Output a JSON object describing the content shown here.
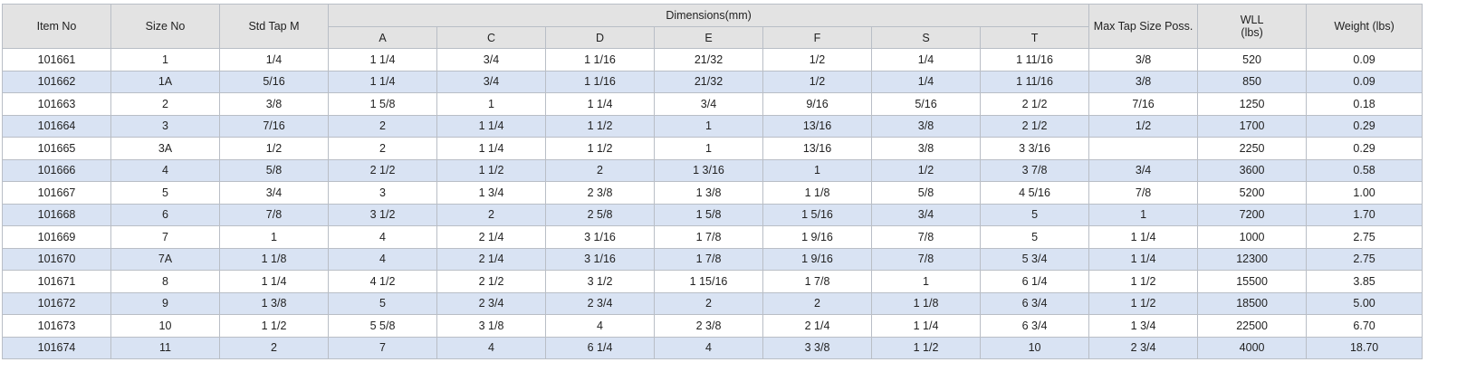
{
  "table": {
    "headers": {
      "item_no": "Item No",
      "size_no": "Size No",
      "std_tap": "Std Tap M",
      "dimensions": "Dimensions(mm)",
      "dim_cols": [
        "A",
        "C",
        "D",
        "E",
        "F",
        "S",
        "T"
      ],
      "max_tap": "Max Tap Size Poss.",
      "wll_line1": "WLL",
      "wll_line2": "(lbs)",
      "weight": "Weight (lbs)"
    },
    "rows": [
      [
        "101661",
        "1",
        "1/4",
        "1 1/4",
        "3/4",
        "1 1/16",
        "21/32",
        "1/2",
        "1/4",
        "1 11/16",
        "3/8",
        "520",
        "0.09"
      ],
      [
        "101662",
        "1A",
        "5/16",
        "1 1/4",
        "3/4",
        "1 1/16",
        "21/32",
        "1/2",
        "1/4",
        "1 11/16",
        "3/8",
        "850",
        "0.09"
      ],
      [
        "101663",
        "2",
        "3/8",
        "1 5/8",
        "1",
        "1 1/4",
        "3/4",
        "9/16",
        "5/16",
        "2 1/2",
        "7/16",
        "1250",
        "0.18"
      ],
      [
        "101664",
        "3",
        "7/16",
        "2",
        "1 1/4",
        "1 1/2",
        "1",
        "13/16",
        "3/8",
        "2 1/2",
        "1/2",
        "1700",
        "0.29"
      ],
      [
        "101665",
        "3A",
        "1/2",
        "2",
        "1 1/4",
        "1 1/2",
        "1",
        "13/16",
        "3/8",
        "3 3/16",
        "",
        "2250",
        "0.29"
      ],
      [
        "101666",
        "4",
        "5/8",
        "2 1/2",
        "1 1/2",
        "2",
        "1 3/16",
        "1",
        "1/2",
        "3 7/8",
        "3/4",
        "3600",
        "0.58"
      ],
      [
        "101667",
        "5",
        "3/4",
        "3",
        "1 3/4",
        "2 3/8",
        "1 3/8",
        "1 1/8",
        "5/8",
        "4 5/16",
        "7/8",
        "5200",
        "1.00"
      ],
      [
        "101668",
        "6",
        "7/8",
        "3 1/2",
        "2",
        "2 5/8",
        "1 5/8",
        "1 5/16",
        "3/4",
        "5",
        "1",
        "7200",
        "1.70"
      ],
      [
        "101669",
        "7",
        "1",
        "4",
        "2 1/4",
        "3 1/16",
        "1 7/8",
        "1 9/16",
        "7/8",
        "5",
        "1 1/4",
        "1000",
        "2.75"
      ],
      [
        "101670",
        "7A",
        "1 1/8",
        "4",
        "2 1/4",
        "3 1/16",
        "1 7/8",
        "1 9/16",
        "7/8",
        "5 3/4",
        "1 1/4",
        "12300",
        "2.75"
      ],
      [
        "101671",
        "8",
        "1 1/4",
        "4 1/2",
        "2 1/2",
        "3 1/2",
        "1 15/16",
        "1 7/8",
        "1",
        "6 1/4",
        "1 1/2",
        "15500",
        "3.85"
      ],
      [
        "101672",
        "9",
        "1 3/8",
        "5",
        "2 3/4",
        "2 3/4",
        "2",
        "2",
        "1 1/8",
        "6 3/4",
        "1 1/2",
        "18500",
        "5.00"
      ],
      [
        "101673",
        "10",
        "1 1/2",
        "5 5/8",
        "3 1/8",
        "4",
        "2 3/8",
        "2 1/4",
        "1 1/4",
        "6 3/4",
        "1 3/4",
        "22500",
        "6.70"
      ],
      [
        "101674",
        "11",
        "2",
        "7",
        "4",
        "6 1/4",
        "4",
        "3 3/8",
        "1 1/2",
        "10",
        "2 3/4",
        "4000",
        "18.70"
      ]
    ]
  }
}
